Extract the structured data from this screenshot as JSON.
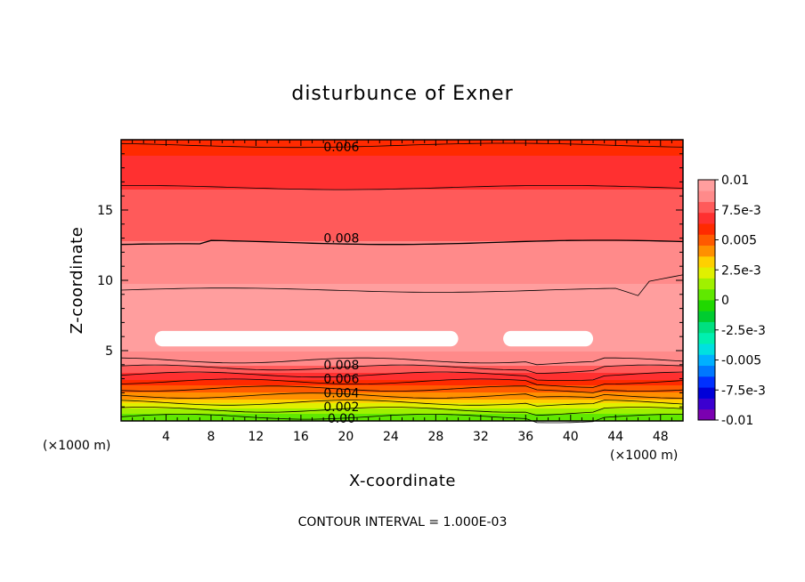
{
  "chart_data": {
    "type": "contour",
    "title": "disturbunce of Exner",
    "xlabel": "X-coordinate",
    "ylabel": "Z-coordinate",
    "x_unit": "(×1000 m)",
    "xlim": [
      0,
      50
    ],
    "ylim": [
      0,
      20
    ],
    "x_ticks": [
      "4",
      "8",
      "12",
      "16",
      "20",
      "24",
      "28",
      "32",
      "36",
      "40",
      "44",
      "48"
    ],
    "x_tick_values": [
      4,
      8,
      12,
      16,
      20,
      24,
      28,
      32,
      36,
      40,
      44,
      48
    ],
    "y_ticks": [
      "5",
      "10",
      "15"
    ],
    "y_tick_values": [
      5,
      10,
      15
    ],
    "contour_interval_text": "CONTOUR INTERVAL = 1.000E-03",
    "contour_labels": [
      {
        "text": "0.006",
        "x": 20,
        "z": 19.5
      },
      {
        "text": "0.008",
        "x": 20,
        "z": 13.0
      },
      {
        "text": "0.008",
        "x": 20,
        "z": 4.0
      },
      {
        "text": "0.006",
        "x": 20,
        "z": 3.0
      },
      {
        "text": "0.004",
        "x": 20,
        "z": 2.0
      },
      {
        "text": "0.002",
        "x": 20,
        "z": 1.0
      },
      {
        "text": "0.00",
        "x": 20,
        "z": 0.2
      }
    ],
    "profile_z": [
      0,
      0.5,
      1,
      1.5,
      2,
      2.5,
      3,
      3.5,
      4,
      5,
      6,
      7,
      8,
      9,
      10,
      11,
      12,
      13,
      14,
      15,
      16,
      17,
      18,
      19,
      20
    ],
    "profile_values": [
      0.0,
      0.001,
      0.002,
      0.0035,
      0.0045,
      0.0055,
      0.0065,
      0.0075,
      0.0082,
      0.0092,
      0.0102,
      0.0098,
      0.0095,
      0.0093,
      0.009,
      0.0087,
      0.0085,
      0.0081,
      0.0079,
      0.0077,
      0.0074,
      0.0071,
      0.0067,
      0.0063,
      0.006
    ],
    "colorbar": {
      "range": [
        -0.01,
        0.01
      ],
      "labels": [
        "0.01",
        "7.5e-3",
        "0.005",
        "2.5e-3",
        "0",
        "-2.5e-3",
        "-0.005",
        "-7.5e-3",
        "-0.01"
      ],
      "label_values": [
        0.01,
        0.0075,
        0.005,
        0.0025,
        0,
        -0.0025,
        -0.005,
        -0.0075,
        -0.01
      ],
      "colors": [
        "#7a00b0",
        "#3b00d0",
        "#0000d8",
        "#0030ff",
        "#0078ff",
        "#00b0ff",
        "#00e0e0",
        "#00f0b0",
        "#00e080",
        "#00cc30",
        "#20d800",
        "#60e800",
        "#a0f000",
        "#e0f000",
        "#ffd000",
        "#ff9000",
        "#ff5a00",
        "#ff2a00",
        "#ff3030",
        "#ff5a5a",
        "#ff8a8a",
        "#ff9e9e"
      ]
    }
  }
}
